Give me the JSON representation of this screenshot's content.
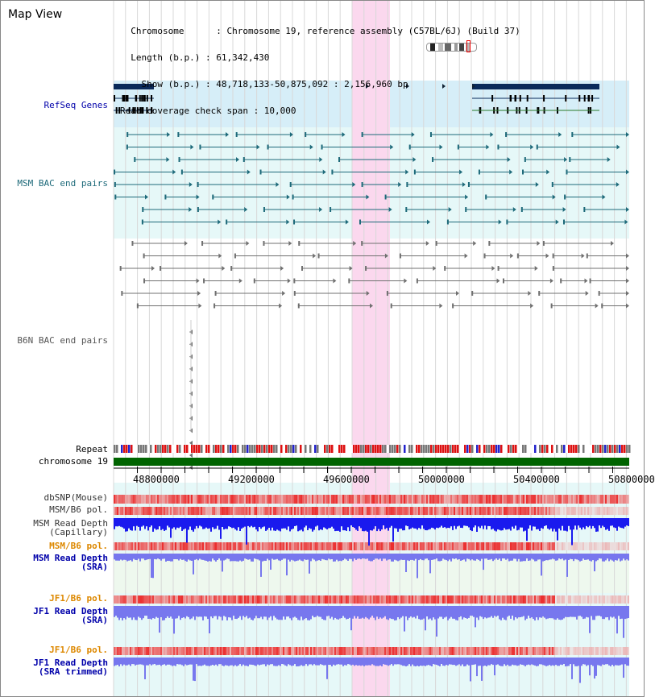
{
  "title": "Map View",
  "info": {
    "lines": [
      "  Chromosome      : Chromosome 19, reference assembly (C57BL/6J) (Build 37)",
      "  Length (b.p.) : 61,342,430",
      "    Show (b.p.) : 48,718,133-50,875,092 : 2,156,960 bp",
      "Read coverage check span : 10,000"
    ]
  },
  "tracks": {
    "refseq": "RefSeq Genes",
    "msm_bac": "MSM BAC end pairs",
    "b6n_bac": "B6N BAC end pairs",
    "repeat": "Repeat",
    "chromosome": "chromosome 19",
    "dbsnp": "dbSNP(Mouse)",
    "msm_pol_cap": "MSM/B6 pol.",
    "msm_depth_cap_1": "MSM Read Depth",
    "msm_depth_cap_2": "(Capillary)",
    "msm_pol_sra": "MSM/B6 pol.",
    "msm_depth_sra_1": "MSM Read Depth",
    "msm_depth_sra_2": "(SRA)",
    "jf1_pol_sra": "JF1/B6 pol.",
    "jf1_depth_sra_1": "JF1 Read Depth",
    "jf1_depth_sra_2": "(SRA)",
    "jf1_pol_trim": "JF1/B6 pol.",
    "jf1_depth_trim_1": "JF1 Read Depth",
    "jf1_depth_trim_2": "(SRA trimmed)"
  },
  "axis": {
    "ticks": [
      "48800000",
      "49200000",
      "49600000",
      "50000000",
      "50400000",
      "50800000"
    ]
  },
  "colors": {
    "refseq_band": "#d6eef8",
    "bac_band": "#e6f8f8",
    "highlight": "#fbd8ee",
    "gene": "#0a2a5a",
    "msm": "#1e6a7a",
    "b6n": "#707070",
    "chrom": "#006400",
    "label_blue": "#0000aa",
    "label_orange": "#dd8800",
    "depth_cap": "#1a1aee",
    "depth_sra": "#7777ee"
  }
}
